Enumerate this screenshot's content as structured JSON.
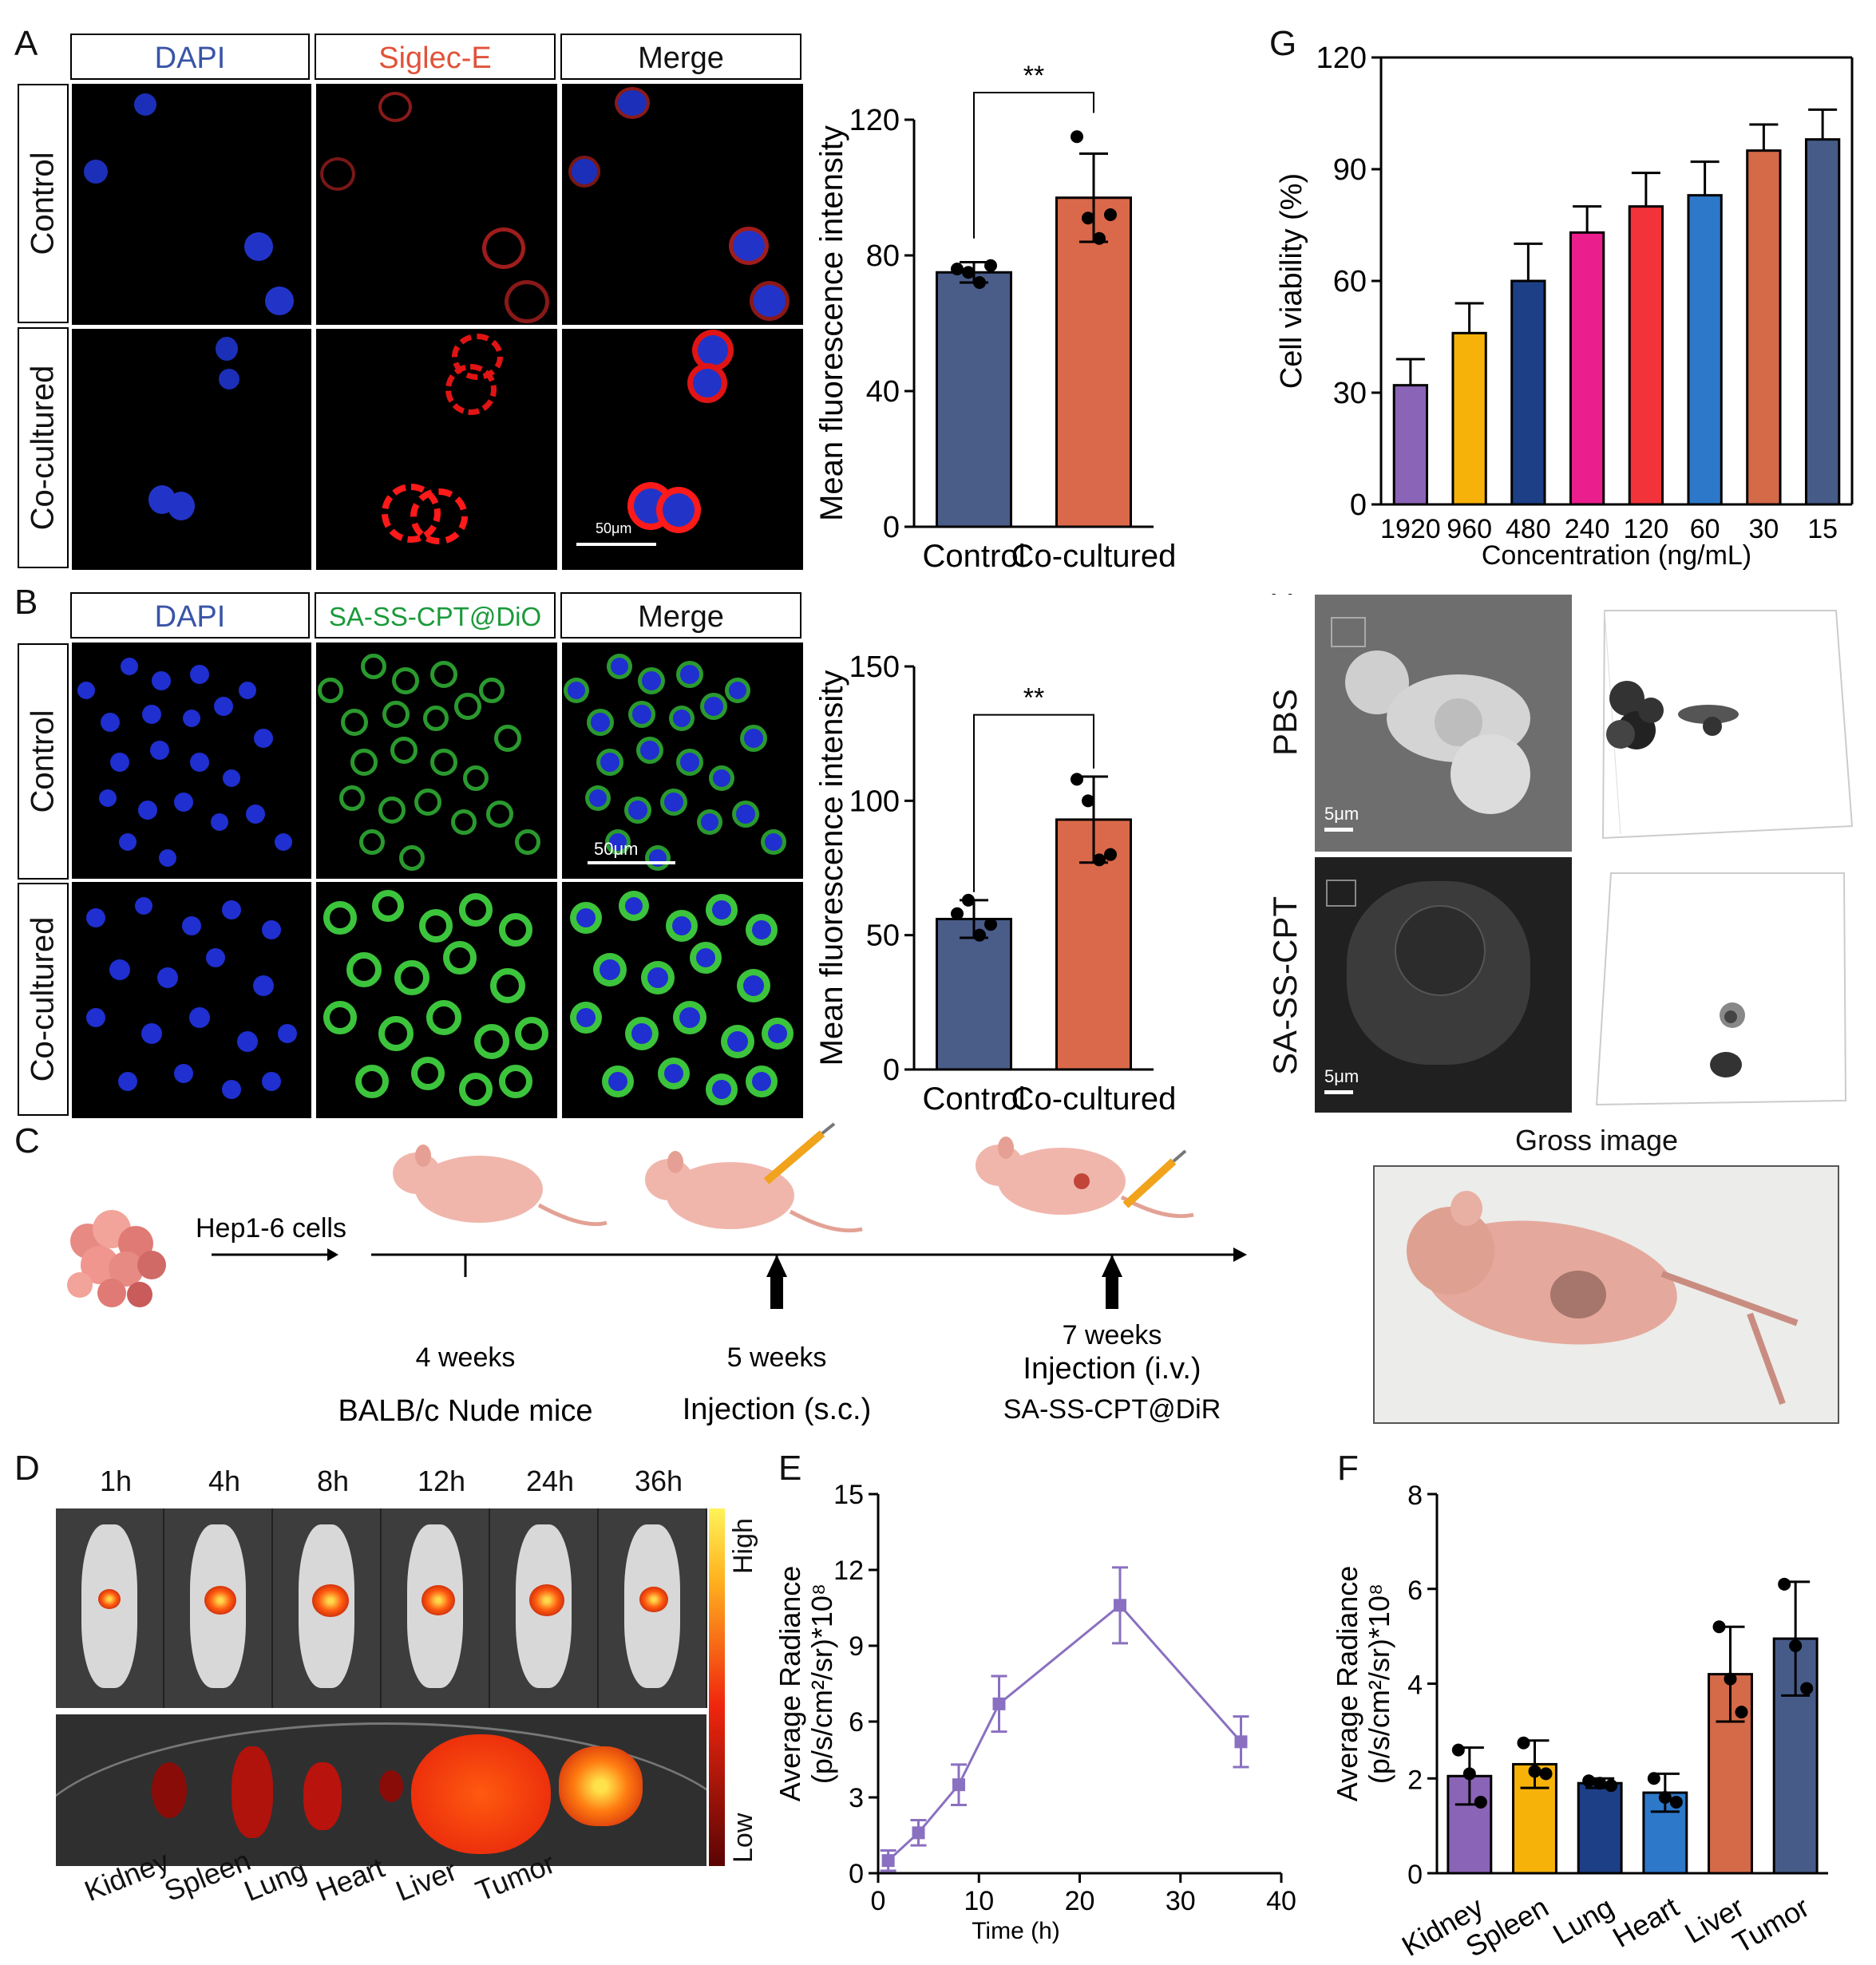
{
  "panel_labels": {
    "A": "A",
    "B": "B",
    "C": "C",
    "D": "D",
    "E": "E",
    "F": "F",
    "G": "G",
    "H": "H"
  },
  "panelA": {
    "headers": [
      "DAPI",
      "Siglec-E",
      "Merge"
    ],
    "header_colors": [
      "#3a55a8",
      "#e0533a",
      "#111111"
    ],
    "rows": [
      "Control",
      "Co-cultured"
    ],
    "scale_bar": "50μm"
  },
  "panelB": {
    "headers": [
      "DAPI",
      "SA-SS-CPT@DiO",
      "Merge"
    ],
    "header_colors": [
      "#3a55a8",
      "#1a9a3a",
      "#111111"
    ],
    "rows": [
      "Control",
      "Co-cultured"
    ],
    "scale_bar": "50μm"
  },
  "panelC": {
    "cells_label": "Hep1-6 cells",
    "t1": "4 weeks",
    "t1_sub": "BALB/c Nude mice",
    "t2": "5 weeks",
    "t2_sub": "Injection (s.c.)",
    "t3": "7 weeks",
    "t3_sub": "Injection (i.v.)",
    "t3_sub2": "SA-SS-CPT@DiR"
  },
  "panelD": {
    "times": [
      "1h",
      "4h",
      "8h",
      "12h",
      "24h",
      "36h"
    ],
    "organs": [
      "Kidney",
      "Spleen",
      "Lung",
      "Heart",
      "Liver",
      "Tumor"
    ],
    "scale_high": "High",
    "scale_low": "Low"
  },
  "panelH": {
    "rows": [
      "PBS",
      "SA-SS-CPT"
    ],
    "scale_bar": "5μm",
    "gross_title": "Gross image"
  },
  "colors": {
    "control": "#4a5c88",
    "cocultured": "#d9694a",
    "purple": "#8a70c0"
  },
  "chart_data": [
    {
      "id": "A-bar",
      "type": "bar",
      "categories": [
        "Control",
        "Co-cultured"
      ],
      "values": [
        75,
        97
      ],
      "errors": [
        3,
        13
      ],
      "points": [
        [
          76,
          75,
          72,
          77
        ],
        [
          115,
          91,
          85,
          92
        ]
      ],
      "ylabel": "Mean fluorescence intensity",
      "ylim": [
        0,
        120
      ],
      "yticks": [
        0,
        40,
        80,
        120
      ],
      "significance": "**"
    },
    {
      "id": "B-bar",
      "type": "bar",
      "categories": [
        "Control",
        "Co-cultured"
      ],
      "values": [
        56,
        93
      ],
      "errors": [
        7,
        16
      ],
      "points": [
        [
          58,
          63,
          50,
          54
        ],
        [
          108,
          100,
          78,
          80
        ]
      ],
      "ylabel": "Mean fluorescence intensity",
      "ylim": [
        0,
        150
      ],
      "yticks": [
        0,
        50,
        100,
        150
      ],
      "significance": "**"
    },
    {
      "id": "G-bar",
      "type": "bar",
      "categories": [
        "1920",
        "960",
        "480",
        "240",
        "120",
        "60",
        "30",
        "15"
      ],
      "values": [
        32,
        46,
        60,
        73,
        80,
        83,
        95,
        98
      ],
      "errors": [
        7,
        8,
        10,
        7,
        9,
        9,
        7,
        8
      ],
      "colors": [
        "#8a64b6",
        "#f7b20a",
        "#1c3f86",
        "#ea1e8c",
        "#f2333a",
        "#2d78c8",
        "#d46a48",
        "#465b88"
      ],
      "xlabel": "Concentration (ng/mL)",
      "ylabel": "Cell viability (%)",
      "ylim": [
        0,
        120
      ],
      "yticks": [
        0,
        30,
        60,
        90,
        120
      ]
    },
    {
      "id": "E-line",
      "type": "line",
      "x": [
        1,
        4,
        8,
        12,
        24,
        36
      ],
      "y": [
        0.5,
        1.6,
        3.5,
        6.7,
        10.6,
        5.2
      ],
      "errors": [
        0.4,
        0.5,
        0.8,
        1.1,
        1.5,
        1.0
      ],
      "xlabel": "Time (h)",
      "ylabel": "Average Radiance",
      "ylabel2": "(p/s/cm²/sr)*10⁸",
      "xlim": [
        0,
        40
      ],
      "xticks": [
        0,
        10,
        20,
        30,
        40
      ],
      "ylim": [
        0,
        15
      ],
      "yticks": [
        0,
        3,
        6,
        9,
        12,
        15
      ]
    },
    {
      "id": "F-bar",
      "type": "bar",
      "categories": [
        "Kidney",
        "Spleen",
        "Lung",
        "Heart",
        "Liver",
        "Tumor"
      ],
      "values": [
        2.05,
        2.3,
        1.9,
        1.7,
        4.2,
        4.95
      ],
      "errors": [
        0.6,
        0.5,
        0.1,
        0.4,
        1.0,
        1.2
      ],
      "points": [
        [
          2.6,
          2.1,
          1.5
        ],
        [
          2.75,
          2.15,
          2.1
        ],
        [
          1.95,
          1.9,
          1.85
        ],
        [
          2.0,
          1.6,
          1.5
        ],
        [
          5.2,
          4.1,
          3.4
        ],
        [
          6.1,
          4.8,
          3.9
        ]
      ],
      "colors": [
        "#8a64b6",
        "#f7b20a",
        "#1c3f86",
        "#2d78c8",
        "#d46a48",
        "#465b88"
      ],
      "ylabel": "Average Radiance",
      "ylabel2": "(p/s/cm²/sr)*10⁸",
      "ylim": [
        0,
        8
      ],
      "yticks": [
        0,
        2,
        4,
        6,
        8
      ]
    }
  ]
}
